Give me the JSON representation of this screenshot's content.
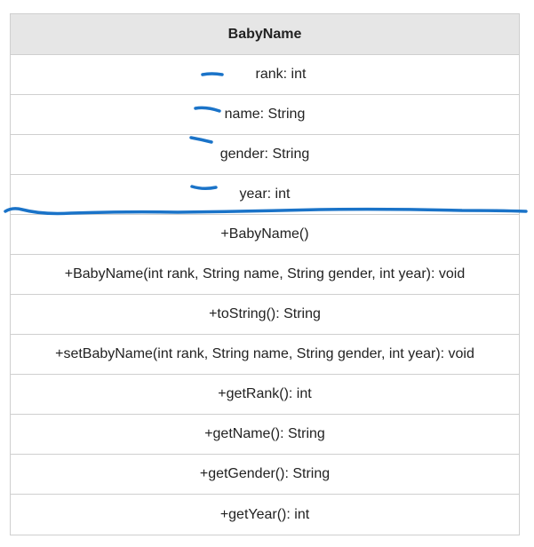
{
  "class_name": "BabyName",
  "attributes": [
    "rank: int",
    "name: String",
    "gender: String",
    "year: int"
  ],
  "methods": [
    "+BabyName()",
    "+BabyName(int rank, String name, String gender, int year): void",
    "+toString(): String",
    "+setBabyName(int rank, String name, String gender, int year): void",
    "+getRank(): int",
    "+getName(): String",
    "+getGender(): String",
    "+getYear(): int"
  ],
  "annotation_color": "#1a73c8"
}
